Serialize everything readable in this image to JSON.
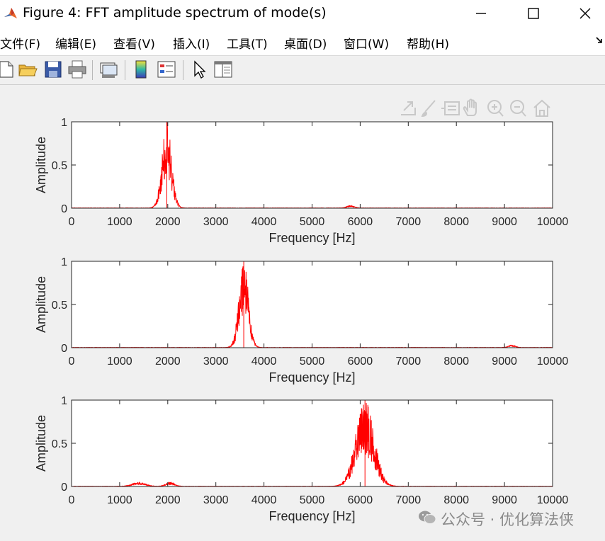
{
  "window": {
    "title": "Figure 4: FFT amplitude spectrum of mode(s)",
    "icon": "matlab-icon"
  },
  "menu": {
    "items": [
      "文件(F)",
      "编辑(E)",
      "查看(V)",
      "插入(I)",
      "工具(T)",
      "桌面(D)",
      "窗口(W)",
      "帮助(H)"
    ]
  },
  "toolbar": {
    "buttons": [
      "new-figure-icon",
      "open-file-icon",
      "save-icon",
      "print-icon",
      "link-plot-icon",
      "colorbar-icon",
      "legend-icon",
      "pointer-icon",
      "property-editor-icon"
    ]
  },
  "axes_toolbar": {
    "icons": [
      "export-icon",
      "brush-icon",
      "data-tips-icon",
      "pan-icon",
      "zoom-in-icon",
      "zoom-out-icon",
      "home-icon"
    ]
  },
  "colors": {
    "line": "#ff0000",
    "axes_background": "#ffffff",
    "figure_background": "#f0f0f0"
  },
  "chart_data": [
    {
      "type": "line",
      "xlabel": "Frequency [Hz]",
      "ylabel": "Amplitude",
      "xlim": [
        0,
        10000
      ],
      "ylim": [
        0,
        1
      ],
      "xticks": [
        "0",
        "1000",
        "2000",
        "3000",
        "4000",
        "5000",
        "6000",
        "7000",
        "8000",
        "9000",
        "10000"
      ],
      "yticks": [
        "0",
        "0.5",
        "1"
      ],
      "peaks": [
        {
          "center": 1980,
          "width": 220,
          "amplitude": 1.0
        },
        {
          "center": 5800,
          "width": 180,
          "amplitude": 0.03
        }
      ]
    },
    {
      "type": "line",
      "xlabel": "Frequency [Hz]",
      "ylabel": "Amplitude",
      "xlim": [
        0,
        10000
      ],
      "ylim": [
        0,
        1
      ],
      "xticks": [
        "0",
        "1000",
        "2000",
        "3000",
        "4000",
        "5000",
        "6000",
        "7000",
        "8000",
        "9000",
        "10000"
      ],
      "yticks": [
        "0",
        "0.5",
        "1"
      ],
      "peaks": [
        {
          "center": 3580,
          "width": 220,
          "amplitude": 1.0
        },
        {
          "center": 9150,
          "width": 160,
          "amplitude": 0.03
        }
      ]
    },
    {
      "type": "line",
      "xlabel": "Frequency [Hz]",
      "ylabel": "Amplitude",
      "xlim": [
        0,
        10000
      ],
      "ylim": [
        0,
        1
      ],
      "xticks": [
        "0",
        "1000",
        "2000",
        "3000",
        "4000",
        "5000",
        "6000",
        "7000",
        "8000",
        "9000",
        "10000"
      ],
      "yticks": [
        "0",
        "0.5",
        "1"
      ],
      "peaks": [
        {
          "center": 6100,
          "width": 420,
          "amplitude": 1.0
        },
        {
          "center": 1400,
          "width": 300,
          "amplitude": 0.05
        },
        {
          "center": 2050,
          "width": 200,
          "amplitude": 0.05
        }
      ]
    }
  ],
  "watermark": {
    "icon": "wechat-icon",
    "text": "公众号 · 优化算法侠"
  }
}
